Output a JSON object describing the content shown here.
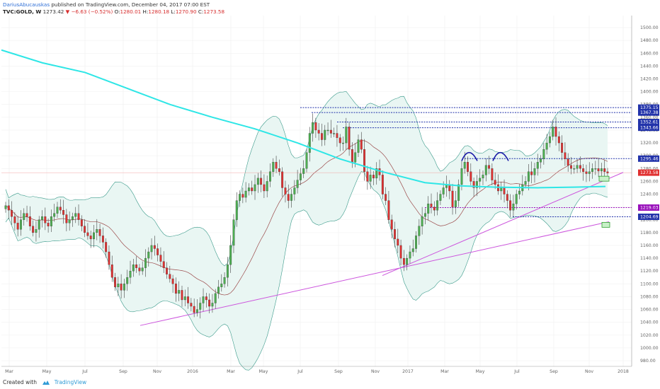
{
  "header": {
    "author": "DariusAbucauskas",
    "published": "published on TradingView.com, December 04, 2017 07:00 EST",
    "symbol": "TVC:GOLD, W",
    "last": "1273.42",
    "change": "▼ −6.63 (−0.52%)",
    "o_label": "O:",
    "o": "1280.01",
    "h_label": "H:",
    "h": "1280.18",
    "l_label": "L:",
    "l": "1270.90",
    "c_label": "C:",
    "c": "1273.58"
  },
  "footer": {
    "created_with": "Created with",
    "brand": "TradingView"
  },
  "colors": {
    "up": "#4caf50",
    "down": "#e03030",
    "ma": "#2ee6e6",
    "band": "#3a9a8a",
    "band_fill": "#e9f6f3",
    "mid": "#9b4a4a",
    "trend": "#cc55dd",
    "blue_line": "#2233aa",
    "purple_line": "#9911bb",
    "tag_blue": "#2233aa",
    "tag_red": "#e03030",
    "tag_purple": "#9911bb"
  },
  "chart_data": {
    "type": "candlestick",
    "title": "",
    "ylim": [
      980,
      1510
    ],
    "y_ticks": [
      1500,
      1480,
      1460,
      1440,
      1420,
      1400,
      1380,
      1360,
      1340,
      1320,
      1300,
      1280,
      1260,
      1240,
      1220,
      1200,
      1180,
      1160,
      1140,
      1120,
      1100,
      1080,
      1060,
      1040,
      1020,
      1000,
      980
    ],
    "y_tick_labels": [
      "1500.00",
      "1480.00",
      "1460.00",
      "1440.00",
      "1420.00",
      "1400.00",
      "1380.00",
      "1360.00",
      "1340.00",
      "1320.00",
      "1300.00",
      "1280.00",
      "1260.00",
      "1240.00",
      "1220.00",
      "1200.00",
      "1180.00",
      "1160.00",
      "1140.00",
      "1120.00",
      "1100.00",
      "1080.00",
      "1060.00",
      "1040.00",
      "1020.00",
      "1000.00",
      "980.00"
    ],
    "x_ticks": [
      "Mar",
      "May",
      "Jul",
      "Sep",
      "Nov",
      "2016",
      "Mar",
      "May",
      "Jul",
      "Sep",
      "Nov",
      "2017",
      "Mar",
      "May",
      "Jul",
      "Sep",
      "Nov",
      "2018"
    ],
    "price_tags": [
      {
        "label": "1375.15",
        "value": 1375.15,
        "color": "tag_blue"
      },
      {
        "label": "1367.38",
        "value": 1367.38,
        "color": "tag_blue"
      },
      {
        "label": "1352.61",
        "value": 1352.61,
        "color": "tag_blue"
      },
      {
        "label": "1343.66",
        "value": 1343.66,
        "color": "tag_blue"
      },
      {
        "label": "1295.46",
        "value": 1295.46,
        "color": "tag_blue"
      },
      {
        "label": "1273.58",
        "value": 1273.58,
        "color": "tag_red"
      },
      {
        "label": "1219.03",
        "value": 1219.03,
        "color": "tag_purple"
      },
      {
        "label": "1204.69",
        "value": 1204.69,
        "color": "tag_blue"
      }
    ],
    "series": [
      {
        "type": "candle",
        "note": "weekly OHLC closes approx",
        "close": [
          1222,
          1215,
          1205,
          1195,
          1185,
          1200,
          1210,
          1205,
          1190,
          1180,
          1185,
          1200,
          1205,
          1195,
          1190,
          1205,
          1210,
          1220,
          1215,
          1208,
          1195,
          1200,
          1205,
          1210,
          1200,
          1190,
          1180,
          1175,
          1170,
          1180,
          1185,
          1175,
          1165,
          1150,
          1130,
          1110,
          1095,
          1100,
          1090,
          1100,
          1110,
          1120,
          1130,
          1125,
          1120,
          1125,
          1140,
          1150,
          1160,
          1155,
          1145,
          1135,
          1125,
          1115,
          1108,
          1100,
          1085,
          1090,
          1075,
          1080,
          1070,
          1065,
          1055,
          1060,
          1070,
          1080,
          1075,
          1065,
          1070,
          1085,
          1095,
          1100,
          1110,
          1130,
          1160,
          1200,
          1230,
          1240,
          1235,
          1245,
          1250,
          1245,
          1255,
          1265,
          1255,
          1245,
          1260,
          1275,
          1290,
          1280,
          1275,
          1250,
          1240,
          1230,
          1240,
          1250,
          1262,
          1272,
          1280,
          1305,
          1335,
          1352,
          1340,
          1335,
          1325,
          1340,
          1340,
          1335,
          1335,
          1328,
          1320,
          1320,
          1345,
          1310,
          1290,
          1305,
          1325,
          1310,
          1275,
          1260,
          1270,
          1265,
          1280,
          1270,
          1240,
          1230,
          1200,
          1185,
          1170,
          1160,
          1140,
          1130,
          1140,
          1150,
          1155,
          1175,
          1190,
          1205,
          1210,
          1225,
          1220,
          1215,
          1230,
          1240,
          1250,
          1255,
          1245,
          1220,
          1230,
          1255,
          1280,
          1290,
          1275,
          1260,
          1250,
          1260,
          1265,
          1270,
          1285,
          1280,
          1262,
          1255,
          1245,
          1250,
          1240,
          1230,
          1215,
          1225,
          1240,
          1245,
          1255,
          1260,
          1275,
          1270,
          1280,
          1290,
          1295,
          1310,
          1320,
          1330,
          1345,
          1330,
          1320,
          1305,
          1295,
          1285,
          1280,
          1280,
          1285,
          1280,
          1275,
          1272,
          1275,
          1280,
          1280,
          1276,
          1280,
          1275,
          1273
        ]
      },
      {
        "name": "",
        "type": "line",
        "role": "moving average"
      },
      {
        "name": "",
        "type": "band",
        "role": "bollinger"
      }
    ],
    "annotations": [
      "double top arcs",
      "ascending trend lines",
      "green target boxes"
    ],
    "grid": true,
    "legend": "none"
  }
}
